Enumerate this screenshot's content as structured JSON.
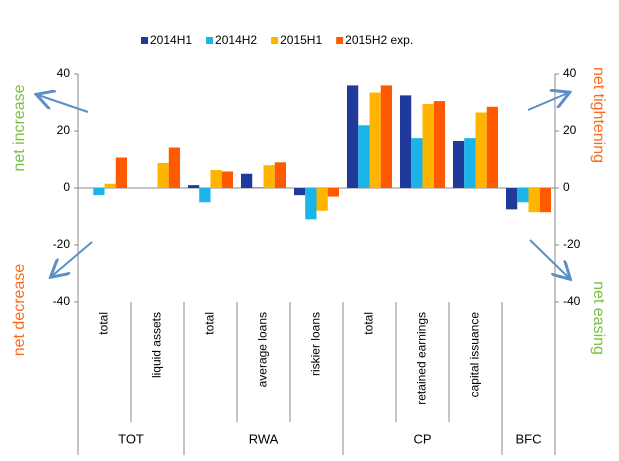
{
  "chart_data": {
    "type": "bar",
    "groups": [
      {
        "name": "TOT",
        "categories": [
          "total",
          "liquid assets"
        ]
      },
      {
        "name": "RWA",
        "categories": [
          "total",
          "average loans",
          "riskier loans"
        ]
      },
      {
        "name": "CP",
        "categories": [
          "total",
          "retained earnings",
          "capital issuance"
        ]
      },
      {
        "name": "BFC",
        "categories": [
          null
        ]
      }
    ],
    "series": [
      {
        "name": "2014H1",
        "color": "#1f3a9a",
        "values": [
          0,
          0,
          1,
          5,
          -2.5,
          36,
          32.5,
          16.5,
          -7.5
        ]
      },
      {
        "name": "2014H2",
        "color": "#1ab4e8",
        "values": [
          -2.5,
          0,
          -5,
          0.3,
          -11,
          22,
          17.5,
          17.5,
          -5
        ]
      },
      {
        "name": "2015H1",
        "color": "#ffb400",
        "values": [
          1.5,
          8.8,
          6.3,
          8,
          -8,
          33.5,
          29.5,
          26.5,
          -8.5
        ]
      },
      {
        "name": "2015H2 exp.",
        "color": "#ff5a00",
        "values": [
          10.7,
          14.2,
          5.8,
          9,
          -3,
          36,
          30.5,
          28.5,
          -8.5
        ]
      }
    ],
    "ylim": [
      -40,
      40
    ],
    "yticks": [
      -40,
      -20,
      0,
      20,
      40
    ],
    "y2lim": [
      -40,
      40
    ],
    "y2ticks": [
      -40,
      -20,
      0,
      20,
      40
    ],
    "annotations": [
      {
        "text": "net increase",
        "color": "#7ac143"
      },
      {
        "text": "net decrease",
        "color": "#ff6a1a"
      },
      {
        "text": "net tightening",
        "color": "#ff6a1a"
      },
      {
        "text": "net easing",
        "color": "#7ac143"
      }
    ]
  }
}
